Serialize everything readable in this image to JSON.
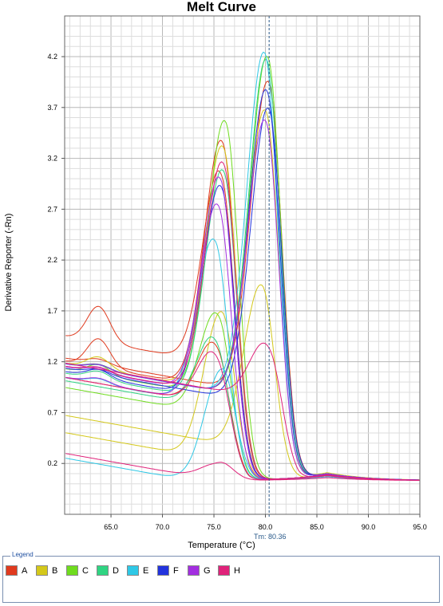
{
  "chart_data": {
    "type": "line",
    "title": "Melt Curve",
    "xlabel": "Temperature (°C)",
    "ylabel": "Derivative Reporter (-Rn)",
    "xlim": [
      60.5,
      95.0
    ],
    "ylim": [
      -0.3,
      4.6
    ],
    "x_ticks": [
      65,
      70,
      75,
      80,
      85,
      90,
      95
    ],
    "x_tick_labels": [
      "65.0",
      "70.0",
      "75.0",
      "80.0",
      "85.0",
      "90.0",
      "95.0"
    ],
    "y_ticks": [
      0.2,
      0.7,
      1.2,
      1.7,
      2.2,
      2.7,
      3.2,
      3.7,
      4.2
    ],
    "y_tick_labels": [
      "0.2",
      "0.7",
      "1.2",
      "1.7",
      "2.2",
      "2.7",
      "3.2",
      "3.7",
      "4.2"
    ],
    "grid": true,
    "tm_marker": {
      "x": 80.36,
      "label": "Tm: 80.36"
    },
    "legend_title": "Legend",
    "legend_placement": "bottom",
    "series": [
      {
        "name": "A",
        "color": "#e03a1e",
        "curves": [
          {
            "base": 1.0,
            "peak_x": 75.9,
            "peak_y": 3.78,
            "tail": 0.06,
            "bump": 0.28
          },
          {
            "base": 0.95,
            "peak_x": 80.4,
            "peak_y": 4.35,
            "tail": 0.07,
            "bump": 0.05
          },
          {
            "base": 1.25,
            "peak_x": 75.8,
            "peak_y": 3.55,
            "tail": 0.06,
            "bump": 0.35
          },
          {
            "base": 0.85,
            "peak_x": 75.4,
            "peak_y": 1.7,
            "tail": 0.05,
            "bump": 0.0
          }
        ]
      },
      {
        "name": "B",
        "color": "#d4c81a",
        "curves": [
          {
            "base": 0.98,
            "peak_x": 76.0,
            "peak_y": 3.72,
            "tail": 0.06,
            "bump": 0.12
          },
          {
            "base": 0.9,
            "peak_x": 80.1,
            "peak_y": 4.05,
            "tail": 0.08,
            "bump": 0.05
          },
          {
            "base": 0.4,
            "peak_x": 79.7,
            "peak_y": 2.15,
            "tail": 0.05,
            "bump": 0.0
          },
          {
            "base": 0.3,
            "peak_x": 75.8,
            "peak_y": 1.85,
            "tail": 0.05,
            "bump": 0.0
          }
        ]
      },
      {
        "name": "C",
        "color": "#6fdc1e",
        "curves": [
          {
            "base": 0.92,
            "peak_x": 76.2,
            "peak_y": 3.95,
            "tail": 0.06,
            "bump": 0.1
          },
          {
            "base": 0.9,
            "peak_x": 80.3,
            "peak_y": 4.58,
            "tail": 0.07,
            "bump": 0.05
          },
          {
            "base": 0.75,
            "peak_x": 75.5,
            "peak_y": 1.98,
            "tail": 0.05,
            "bump": 0.0
          }
        ]
      },
      {
        "name": "D",
        "color": "#2fd482",
        "curves": [
          {
            "base": 0.9,
            "peak_x": 80.2,
            "peak_y": 4.55,
            "tail": 0.07,
            "bump": 0.05
          },
          {
            "base": 0.88,
            "peak_x": 76.0,
            "peak_y": 3.45,
            "tail": 0.06,
            "bump": 0.08
          },
          {
            "base": 0.82,
            "peak_x": 75.3,
            "peak_y": 1.75,
            "tail": 0.05,
            "bump": 0.0
          }
        ]
      },
      {
        "name": "E",
        "color": "#2ec8e6",
        "curves": [
          {
            "base": 0.9,
            "peak_x": 80.0,
            "peak_y": 4.62,
            "tail": 0.07,
            "bump": 0.05
          },
          {
            "base": 0.85,
            "peak_x": 75.2,
            "peak_y": 2.75,
            "tail": 0.06,
            "bump": 0.05
          },
          {
            "base": 0.05,
            "peak_x": 75.8,
            "peak_y": 1.15,
            "tail": 0.04,
            "bump": 0.0
          }
        ]
      },
      {
        "name": "F",
        "color": "#2233dd",
        "curves": [
          {
            "base": 0.9,
            "peak_x": 80.2,
            "peak_y": 4.25,
            "tail": 0.07,
            "bump": 0.05
          },
          {
            "base": 0.9,
            "peak_x": 75.8,
            "peak_y": 3.3,
            "tail": 0.06,
            "bump": 0.08
          },
          {
            "base": 0.85,
            "peak_x": 80.4,
            "peak_y": 4.05,
            "tail": 0.07,
            "bump": 0.05
          }
        ]
      },
      {
        "name": "G",
        "color": "#a32ee0",
        "curves": [
          {
            "base": 0.95,
            "peak_x": 75.7,
            "peak_y": 3.4,
            "tail": 0.06,
            "bump": 0.05
          },
          {
            "base": 0.9,
            "peak_x": 80.1,
            "peak_y": 3.95,
            "tail": 0.07,
            "bump": 0.05
          },
          {
            "base": 0.85,
            "peak_x": 75.5,
            "peak_y": 3.1,
            "tail": 0.06,
            "bump": 0.05
          }
        ]
      },
      {
        "name": "H",
        "color": "#e0227a",
        "curves": [
          {
            "base": 0.9,
            "peak_x": 80.5,
            "peak_y": 1.7,
            "tail": 0.05,
            "bump": 0.0
          },
          {
            "base": 0.95,
            "peak_x": 76.0,
            "peak_y": 3.55,
            "tail": 0.06,
            "bump": 0.05
          },
          {
            "base": 0.1,
            "peak_x": 75.6,
            "peak_y": 0.28,
            "tail": 0.03,
            "bump": 0.0
          },
          {
            "base": 0.85,
            "peak_x": 75.4,
            "peak_y": 1.6,
            "tail": 0.05,
            "bump": 0.0
          }
        ]
      }
    ]
  }
}
